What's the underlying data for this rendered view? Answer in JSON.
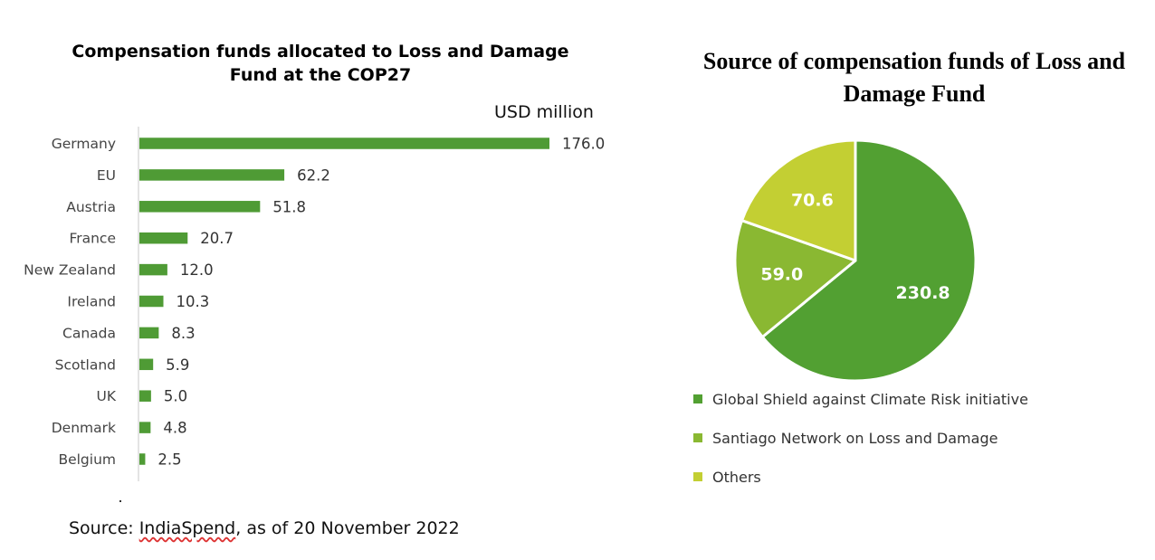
{
  "bar_chart": {
    "title": "Compensation funds allocated to Loss and Damage Fund at the COP27",
    "unit": "USD million",
    "source_prefix": "Source: ",
    "source_link": "IndiaSpend",
    "source_suffix": ", as of 20 November 2022"
  },
  "pie_chart": {
    "title": "Source of compensation funds of Loss and Damage Fund"
  },
  "colors": {
    "bar": "#4f9b35",
    "pie_global_shield": "#52a032",
    "pie_santiago": "#8ab832",
    "pie_others": "#c3cf33",
    "axis": "#c8c8c8"
  },
  "chart_data": [
    {
      "type": "bar",
      "orientation": "horizontal",
      "title": "Compensation funds allocated to Loss and Damage Fund at the COP27",
      "unit": "USD million",
      "categories": [
        "Germany",
        "EU",
        "Austria",
        "France",
        "New Zealand",
        "Ireland",
        "Canada",
        "Scotland",
        "UK",
        "Denmark",
        "Belgium"
      ],
      "values": [
        176.0,
        62.2,
        51.8,
        20.7,
        12.0,
        10.3,
        8.3,
        5.9,
        5.0,
        4.8,
        2.5
      ],
      "value_labels": [
        "176.0",
        "62.2",
        "51.8",
        "20.7",
        "12.0",
        "10.3",
        "8.3",
        "5.9",
        "5.0",
        "4.8",
        "2.5"
      ],
      "xlim": [
        0,
        176
      ],
      "grid": false
    },
    {
      "type": "pie",
      "title": "Source of compensation funds of Loss and Damage Fund",
      "slices": [
        {
          "label": "Global Shield against Climate Risk initiative",
          "value": 230.8,
          "value_label": "230.8",
          "color": "#52a032"
        },
        {
          "label": "Santiago Network on Loss and Damage",
          "value": 59.0,
          "value_label": "59.0",
          "color": "#8ab832"
        },
        {
          "label": "Others",
          "value": 70.6,
          "value_label": "70.6",
          "color": "#c3cf33"
        }
      ],
      "legend_position": "bottom-left"
    }
  ]
}
